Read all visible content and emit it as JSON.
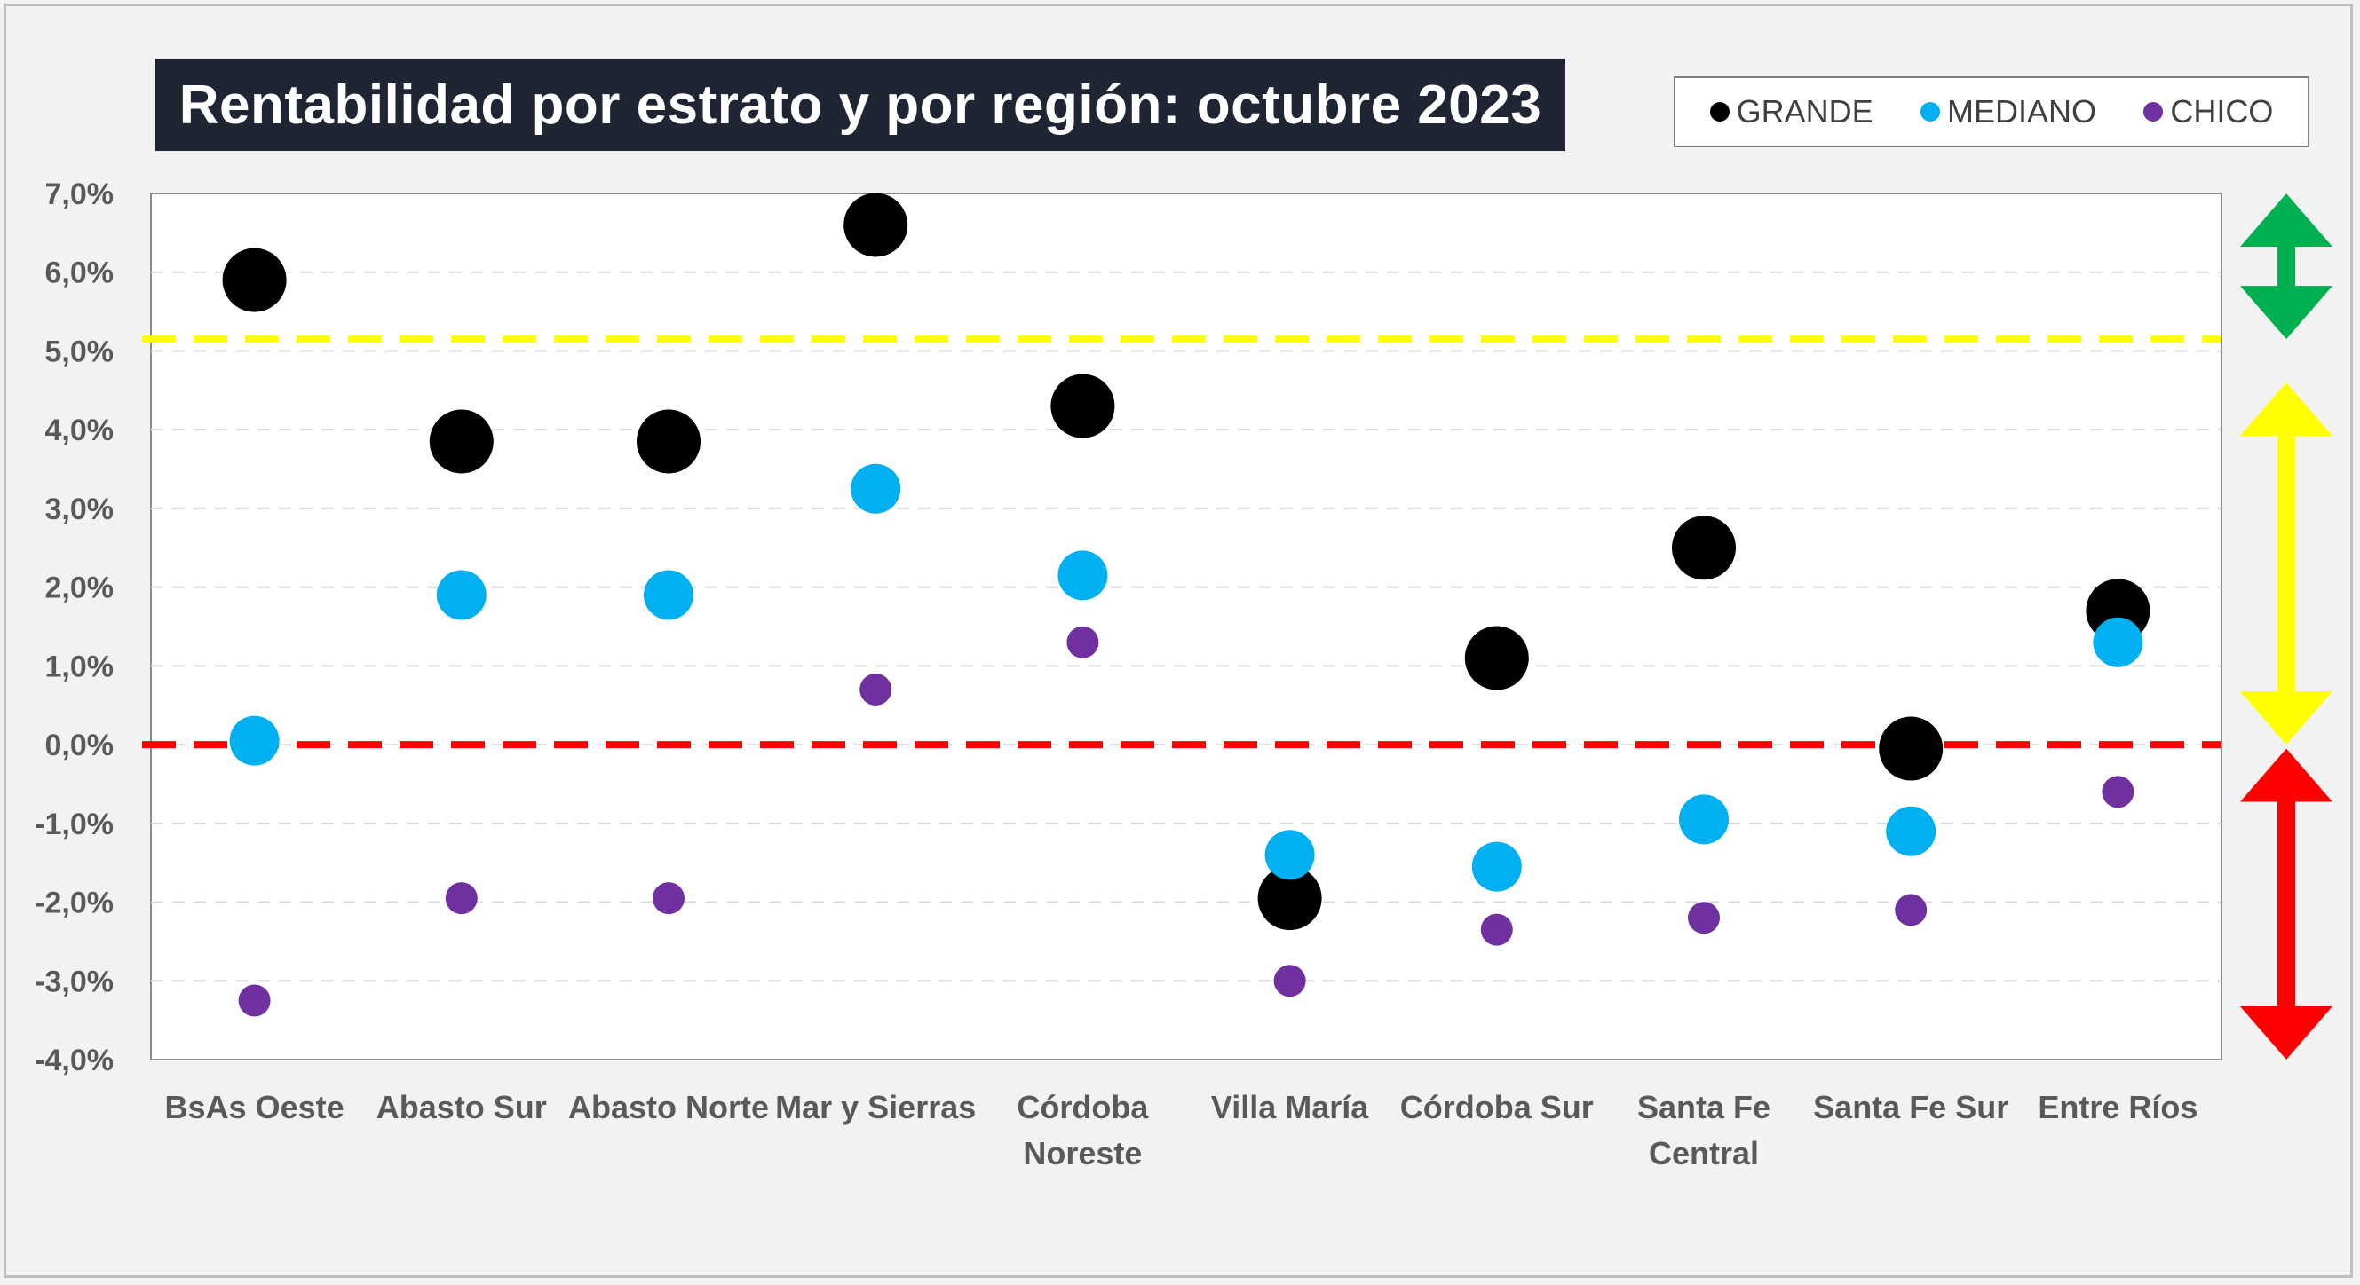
{
  "chart_data": {
    "type": "scatter",
    "title": "Rentabilidad por estrato y por región: octubre 2023",
    "categories": [
      [
        "BsAs Oeste"
      ],
      [
        "Abasto Sur"
      ],
      [
        "Abasto Norte"
      ],
      [
        "Mar y Sierras"
      ],
      [
        "Córdoba",
        "Noreste"
      ],
      [
        "Villa María"
      ],
      [
        "Córdoba Sur"
      ],
      [
        "Santa Fe",
        "Central"
      ],
      [
        "Santa Fe Sur"
      ],
      [
        "Entre Ríos"
      ]
    ],
    "series": [
      {
        "name": "GRANDE",
        "color": "#000000",
        "size": "large",
        "values": [
          5.9,
          3.85,
          3.85,
          6.6,
          4.3,
          -1.95,
          1.1,
          2.5,
          -0.05,
          1.7
        ]
      },
      {
        "name": "MEDIANO",
        "color": "#00b0f0",
        "size": "medium",
        "values": [
          0.05,
          1.9,
          1.9,
          3.25,
          2.15,
          -1.4,
          -1.55,
          -0.95,
          -1.1,
          1.3
        ]
      },
      {
        "name": "CHICO",
        "color": "#7030a0",
        "size": "small",
        "values": [
          -3.25,
          -1.95,
          -1.95,
          0.7,
          1.3,
          -3.0,
          -2.35,
          -2.2,
          -2.1,
          -0.6
        ]
      }
    ],
    "ylim": [
      -4,
      7
    ],
    "yticks": [
      "7,0%",
      "6,0%",
      "5,0%",
      "4,0%",
      "3,0%",
      "2,0%",
      "1,0%",
      "0,0%",
      "-1,0%",
      "-2,0%",
      "-3,0%",
      "-4,0%"
    ],
    "ytick_values": [
      7,
      6,
      5,
      4,
      3,
      2,
      1,
      0,
      -1,
      -2,
      -3,
      -4
    ],
    "reference_lines": [
      {
        "value": 5.15,
        "color": "#ffff00",
        "style": "dashed"
      },
      {
        "value": 0.0,
        "color": "#ff0000",
        "style": "dashed"
      }
    ],
    "zone_arrows": [
      {
        "from": 5.15,
        "to": 7.0,
        "color": "#00b050"
      },
      {
        "from": 0.0,
        "to": 4.6,
        "color": "#ffff00"
      },
      {
        "from": -4.0,
        "to": -0.05,
        "color": "#ff0000"
      }
    ],
    "grid": true,
    "legend_position": "top-right"
  }
}
